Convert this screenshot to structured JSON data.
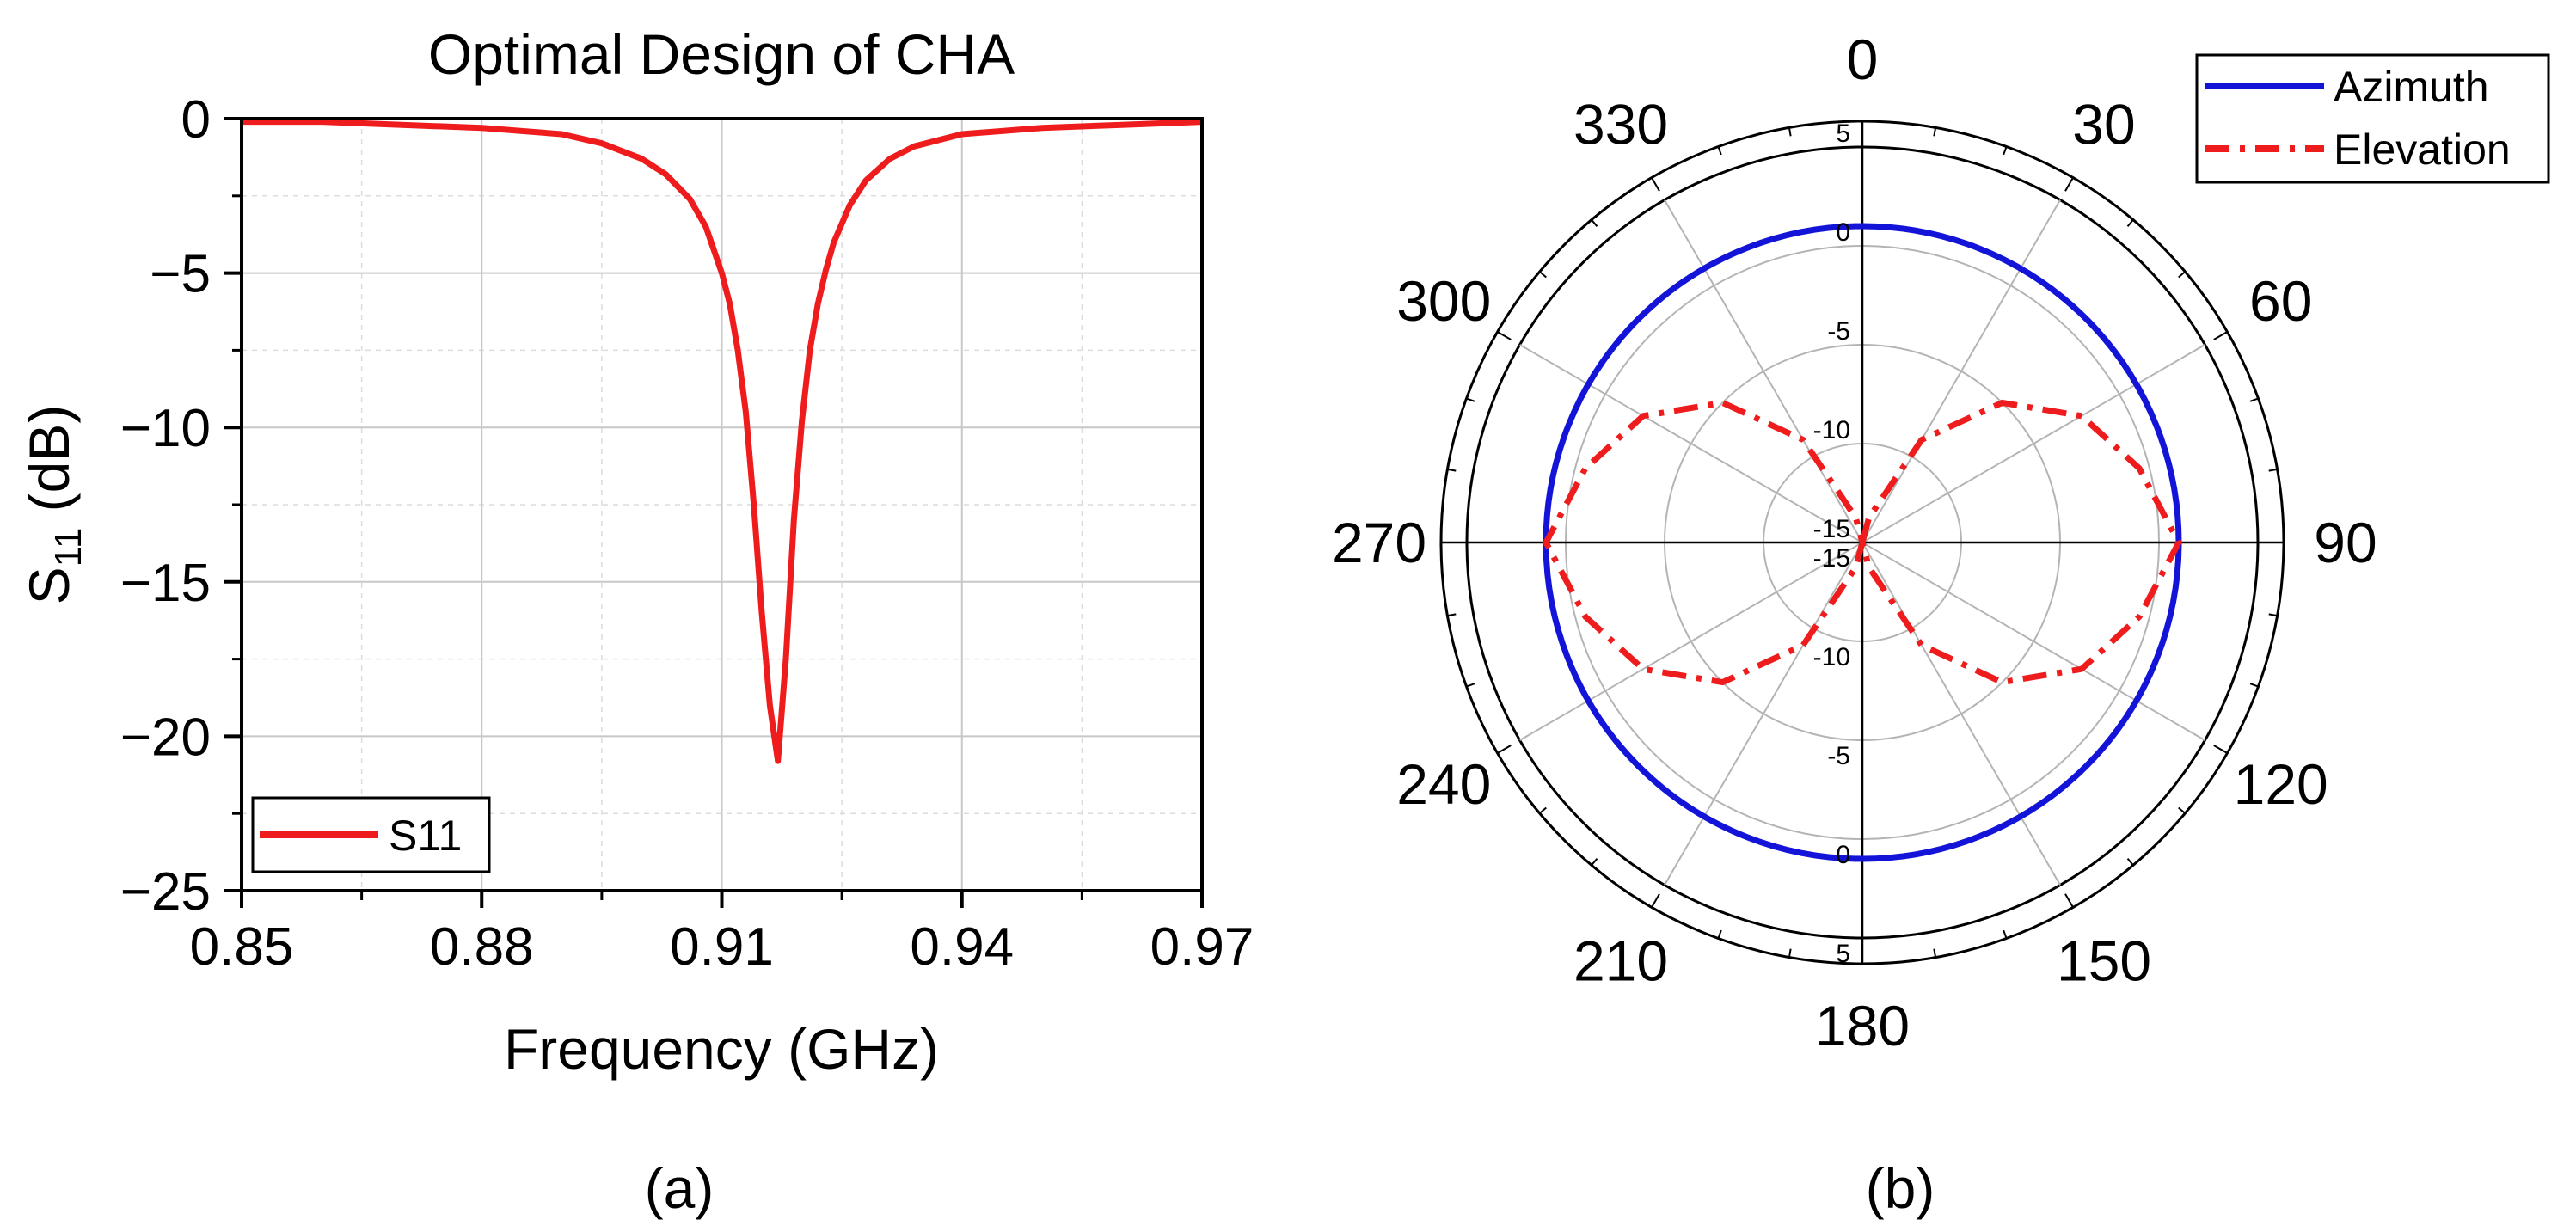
{
  "chart_data": [
    {
      "type": "line",
      "title": "Optimal Design of CHA",
      "xlabel": "Frequency (GHz)",
      "ylabel_main": "S",
      "ylabel_sub": "11",
      "ylabel_unit": " (dB)",
      "xlim": [
        0.85,
        0.97
      ],
      "ylim": [
        -25,
        0
      ],
      "x_ticks": [
        0.85,
        0.88,
        0.91,
        0.94,
        0.97
      ],
      "x_tick_labels": [
        "0.85",
        "0.88",
        "0.91",
        "0.94",
        "0.97"
      ],
      "y_ticks": [
        0,
        -5,
        -10,
        -15,
        -20,
        -25
      ],
      "y_tick_labels": [
        "0",
        "−5",
        "−10",
        "−15",
        "−20",
        "−25"
      ],
      "grid": true,
      "legend": "bottom-left",
      "series": [
        {
          "name": "S11",
          "color": "#ee1c1c",
          "resonance_ghz": 0.917,
          "x": [
            0.85,
            0.86,
            0.87,
            0.88,
            0.89,
            0.895,
            0.9,
            0.903,
            0.906,
            0.908,
            0.91,
            0.911,
            0.912,
            0.913,
            0.914,
            0.915,
            0.916,
            0.917,
            0.918,
            0.919,
            0.92,
            0.921,
            0.922,
            0.923,
            0.924,
            0.926,
            0.928,
            0.931,
            0.934,
            0.94,
            0.95,
            0.96,
            0.97
          ],
          "values": [
            -0.1,
            -0.1,
            -0.2,
            -0.3,
            -0.5,
            -0.8,
            -1.3,
            -1.8,
            -2.6,
            -3.5,
            -5.0,
            -6.0,
            -7.5,
            -9.5,
            -12.5,
            -16.0,
            -19.0,
            -20.8,
            -17.5,
            -13.0,
            -9.8,
            -7.5,
            -6.0,
            -4.9,
            -4.0,
            -2.8,
            -2.0,
            -1.3,
            -0.9,
            -0.5,
            -0.3,
            -0.2,
            -0.1
          ]
        }
      ],
      "caption": "(a)"
    },
    {
      "type": "polar",
      "angle_labels": [
        "0",
        "30",
        "60",
        "90",
        "120",
        "150",
        "180",
        "210",
        "240",
        "270",
        "300",
        "330"
      ],
      "angle_direction": "clockwise",
      "zero_location": "top",
      "r_ticks": [
        5,
        0,
        -5,
        -10,
        -15
      ],
      "r_tick_labels": [
        "5",
        "0",
        "-5",
        "-10",
        "-15"
      ],
      "rlim": [
        -15,
        5
      ],
      "grid": true,
      "legend": "top-right",
      "series": [
        {
          "name": "Azimuth",
          "color": "#1414d8",
          "line_style": "solid",
          "angles_deg": [
            0,
            90,
            180,
            270
          ],
          "values_db": [
            1,
            1,
            1,
            1
          ]
        },
        {
          "name": "Elevation",
          "color": "#ee1c1c",
          "line_style": "dash-dot",
          "peak_db": 1,
          "null_db": -15,
          "angles_deg": [
            0,
            15,
            30,
            45,
            60,
            75,
            90,
            105,
            120,
            135,
            150,
            165,
            180
          ],
          "values_db": [
            -15,
            -13.7,
            -9.0,
            -5.0,
            -2.2,
            -0.5,
            1.0,
            -0.5,
            -2.2,
            -5.0,
            -9.0,
            -13.7,
            -15
          ]
        }
      ],
      "caption": "(b)"
    }
  ]
}
